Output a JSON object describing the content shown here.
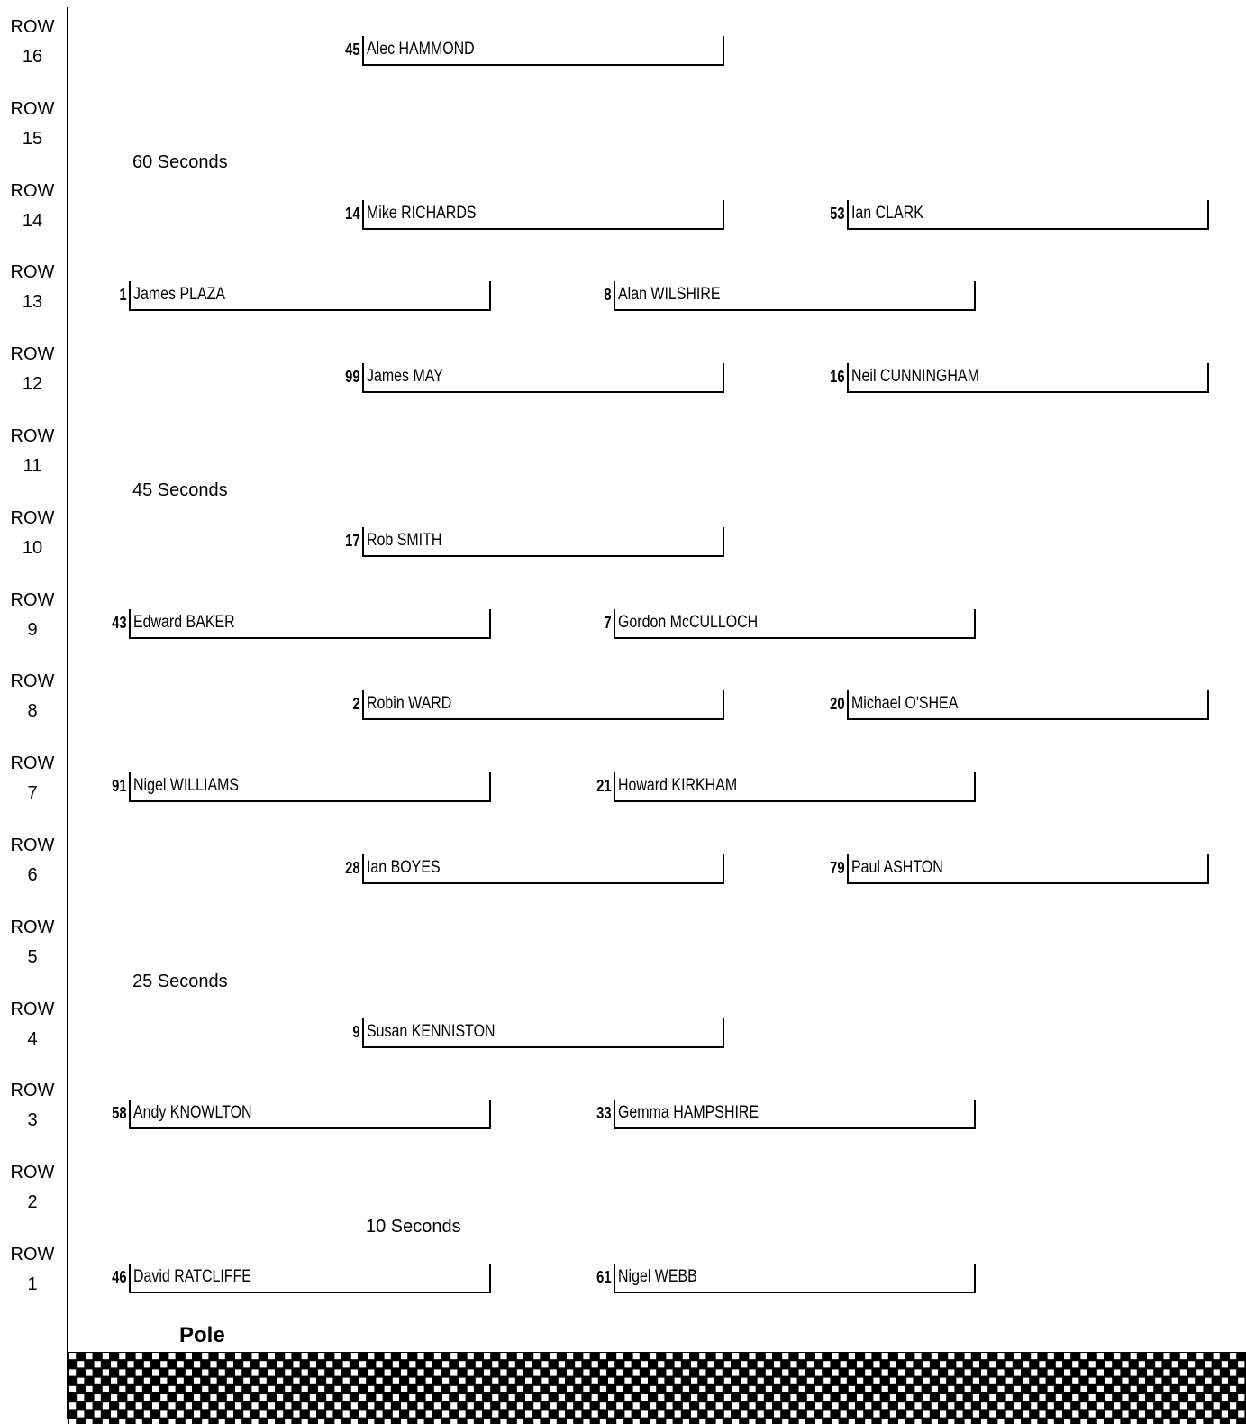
{
  "row_prefix": "ROW",
  "rows": [
    {
      "row": "16",
      "slots": [
        {
          "col": "c",
          "num": "45",
          "name": "Alec HAMMOND"
        }
      ]
    },
    {
      "row": "15",
      "slots": []
    },
    {
      "row": "14",
      "slots": [
        {
          "col": "c",
          "num": "14",
          "name": "Mike RICHARDS"
        },
        {
          "col": "e",
          "num": "53",
          "name": "Ian CLARK"
        }
      ]
    },
    {
      "row": "13",
      "slots": [
        {
          "col": "l",
          "num": "1",
          "name": "James PLAZA"
        },
        {
          "col": "d",
          "num": "8",
          "name": "Alan WILSHIRE"
        }
      ]
    },
    {
      "row": "12",
      "slots": [
        {
          "col": "c",
          "num": "99",
          "name": "James MAY"
        },
        {
          "col": "e",
          "num": "16",
          "name": "Neil CUNNINGHAM"
        }
      ]
    },
    {
      "row": "11",
      "slots": []
    },
    {
      "row": "10",
      "slots": [
        {
          "col": "c",
          "num": "17",
          "name": "Rob SMITH"
        }
      ]
    },
    {
      "row": "9",
      "slots": [
        {
          "col": "l",
          "num": "43",
          "name": "Edward BAKER"
        },
        {
          "col": "d",
          "num": "7",
          "name": "Gordon McCULLOCH"
        }
      ]
    },
    {
      "row": "8",
      "slots": [
        {
          "col": "c",
          "num": "2",
          "name": "Robin WARD"
        },
        {
          "col": "e",
          "num": "20",
          "name": "Michael O'SHEA"
        }
      ]
    },
    {
      "row": "7",
      "slots": [
        {
          "col": "l",
          "num": "91",
          "name": "Nigel WILLIAMS"
        },
        {
          "col": "d",
          "num": "21",
          "name": "Howard KIRKHAM"
        }
      ]
    },
    {
      "row": "6",
      "slots": [
        {
          "col": "c",
          "num": "28",
          "name": "Ian BOYES"
        },
        {
          "col": "e",
          "num": "79",
          "name": "Paul ASHTON"
        }
      ]
    },
    {
      "row": "5",
      "slots": []
    },
    {
      "row": "4",
      "slots": [
        {
          "col": "c",
          "num": "9",
          "name": "Susan KENNISTON"
        }
      ]
    },
    {
      "row": "3",
      "slots": [
        {
          "col": "l",
          "num": "58",
          "name": "Andy KNOWLTON"
        },
        {
          "col": "d",
          "num": "33",
          "name": "Gemma HAMPSHIRE"
        }
      ]
    },
    {
      "row": "2",
      "slots": []
    },
    {
      "row": "1",
      "slots": [
        {
          "col": "l",
          "num": "46",
          "name": "David RATCLIFFE"
        },
        {
          "col": "d",
          "num": "61",
          "name": "Nigel WEBB"
        }
      ]
    }
  ],
  "timings": [
    {
      "id": "t60",
      "text": "60 Seconds"
    },
    {
      "id": "t45",
      "text": "45 Seconds"
    },
    {
      "id": "t25",
      "text": "25 Seconds"
    },
    {
      "id": "t10",
      "text": "10 Seconds"
    }
  ],
  "pole_label": "Pole"
}
